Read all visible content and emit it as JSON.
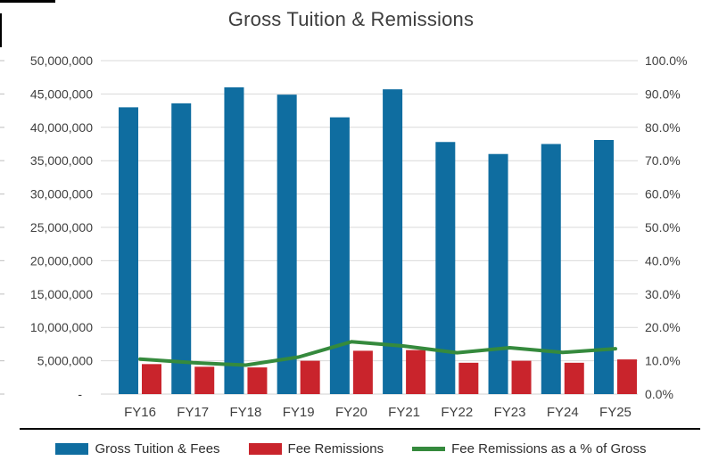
{
  "chart_data": {
    "type": "bar",
    "title": "Gross Tuition & Remissions",
    "categories": [
      "FY16",
      "FY17",
      "FY18",
      "FY19",
      "FY20",
      "FY21",
      "FY22",
      "FY23",
      "FY24",
      "FY25"
    ],
    "series": [
      {
        "name": "Gross Tuition & Fees",
        "type": "bar",
        "axis": "left",
        "color": "#0F6DA0",
        "values": [
          43000000,
          43600000,
          46000000,
          44900000,
          41500000,
          45700000,
          37800000,
          36000000,
          37500000,
          38100000
        ]
      },
      {
        "name": "Fee Remissions",
        "type": "bar",
        "axis": "left",
        "color": "#C9242C",
        "values": [
          4500000,
          4100000,
          4000000,
          5000000,
          6500000,
          6600000,
          4700000,
          5000000,
          4700000,
          5200000
        ]
      },
      {
        "name": "Fee Remissions as a % of Gross",
        "type": "line",
        "axis": "right",
        "color": "#358A3D",
        "values_percent": [
          10.5,
          9.4,
          8.7,
          11.1,
          15.7,
          14.4,
          12.4,
          13.9,
          12.5,
          13.6
        ]
      }
    ],
    "left_axis": {
      "min": 0,
      "max": 50000000,
      "step": 5000000,
      "tick_labels": [
        "50,000,000",
        "45,000,000",
        "40,000,000",
        "35,000,000",
        "30,000,000",
        "25,000,000",
        "20,000,000",
        "15,000,000",
        "10,000,000",
        "5,000,000",
        "-"
      ]
    },
    "right_axis": {
      "min": 0,
      "max": 100,
      "step": 10,
      "tick_labels": [
        "100.0%",
        "90.0%",
        "80.0%",
        "70.0%",
        "60.0%",
        "50.0%",
        "40.0%",
        "30.0%",
        "20.0%",
        "10.0%",
        "0.0%"
      ]
    },
    "grid": true,
    "legend_position": "bottom"
  },
  "colors": {
    "gridline": "#D9D9D9",
    "tick": "#C9C9C9",
    "axis_text": "#3F3F3F",
    "title_text": "#3D3D3D",
    "divider": "#0A0A0A"
  }
}
